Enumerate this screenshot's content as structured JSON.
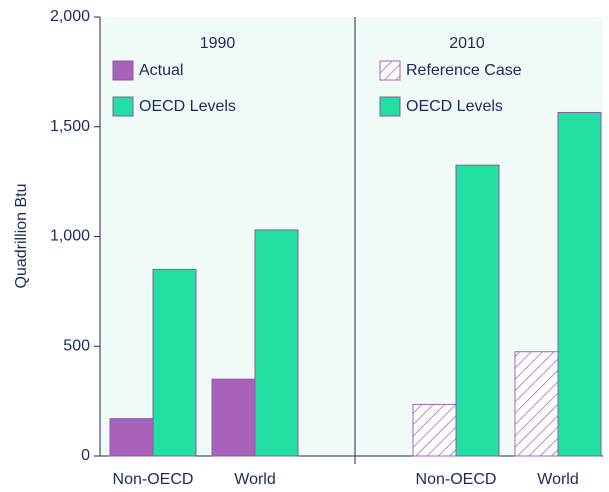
{
  "chart_data": {
    "type": "bar",
    "y_label": "Quadrillion Btu",
    "ylim": [
      0,
      2000
    ],
    "yticks": [
      0,
      500,
      {
        "value": 1000,
        "label": "1,000"
      },
      {
        "value": 1500,
        "label": "1,500"
      },
      {
        "value": 2000,
        "label": "2,000"
      }
    ],
    "panels": [
      {
        "title": "1990",
        "categories": [
          "Non-OECD",
          "World"
        ],
        "series": [
          {
            "name": "Actual",
            "color": "#a862b9",
            "values": [
              170,
              350
            ]
          },
          {
            "name": "OECD Levels",
            "color": "#22e0a2",
            "values": [
              850,
              1030
            ]
          }
        ]
      },
      {
        "title": "2010",
        "categories": [
          "Non-OECD",
          "World"
        ],
        "series": [
          {
            "name": "Reference Case",
            "color": "#a862b9",
            "hatch": true,
            "values": [
              235,
              475
            ]
          },
          {
            "name": "OECD Levels",
            "color": "#22e0a2",
            "values": [
              1325,
              1565
            ]
          }
        ]
      }
    ]
  }
}
